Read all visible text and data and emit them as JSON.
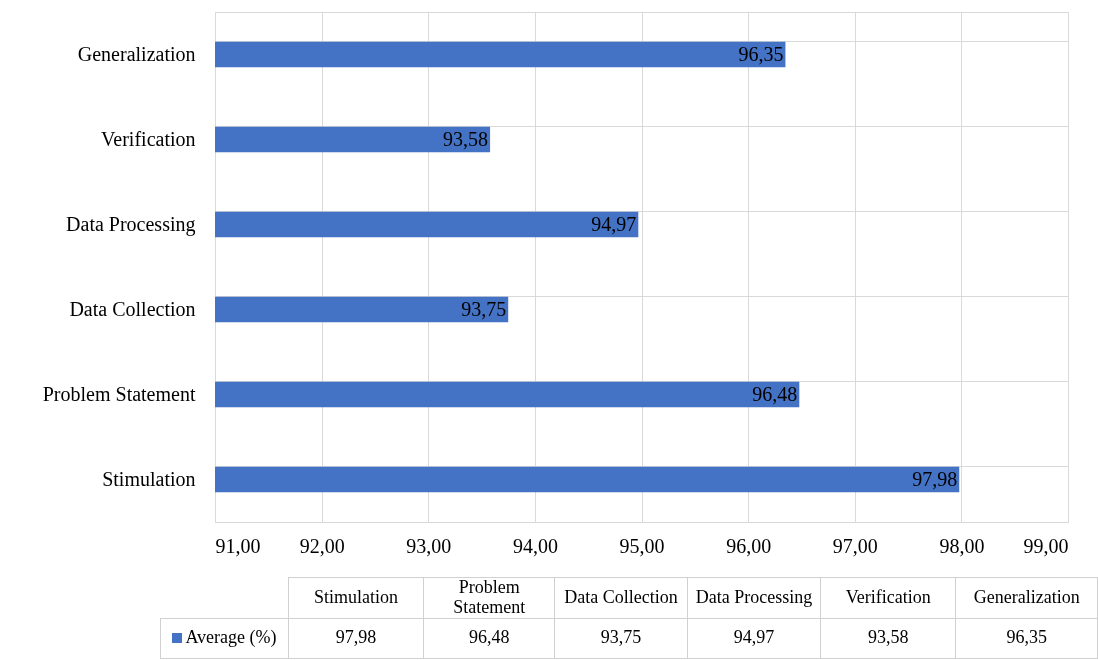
{
  "chart_data": {
    "type": "bar",
    "orientation": "horizontal",
    "categories": [
      "Generalization",
      "Verification",
      "Data Processing",
      "Data Collection",
      "Problem Statement",
      "Stimulation"
    ],
    "series": [
      {
        "name": "Average (%)",
        "color": "#4472c4",
        "values": [
          96.35,
          93.58,
          94.97,
          93.75,
          96.48,
          97.98
        ],
        "value_labels": [
          "96,35",
          "93,58",
          "94,97",
          "93,75",
          "96,48",
          "97,98"
        ]
      }
    ],
    "xlim": [
      91,
      99
    ],
    "xticks": [
      {
        "value": 91,
        "label": "91,00"
      },
      {
        "value": 92,
        "label": "92,00"
      },
      {
        "value": 93,
        "label": "93,00"
      },
      {
        "value": 94,
        "label": "94,00"
      },
      {
        "value": 95,
        "label": "95,00"
      },
      {
        "value": 96,
        "label": "96,00"
      },
      {
        "value": 97,
        "label": "97,00"
      },
      {
        "value": 98,
        "label": "98,00"
      },
      {
        "value": 99,
        "label": "99,00"
      }
    ],
    "grid": true,
    "legend": "bottom"
  }
}
